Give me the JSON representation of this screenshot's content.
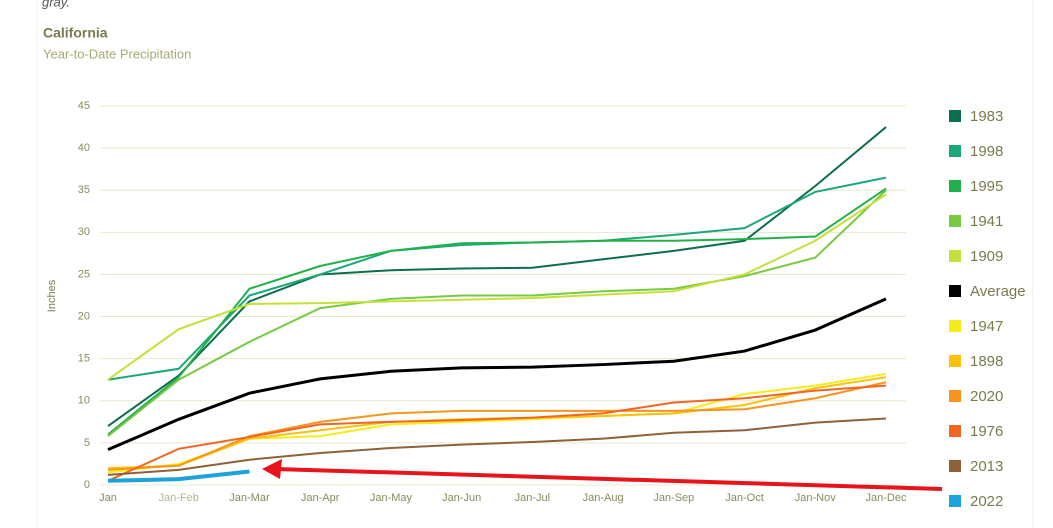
{
  "intro": "gray.",
  "chart_data": {
    "type": "line",
    "title": "California",
    "subtitle": "Year-to-Date Precipitation",
    "y_label": "Inches",
    "categories": [
      "Jan",
      "Jan-Feb",
      "Jan-Mar",
      "Jan-Apr",
      "Jan-May",
      "Jan-Jun",
      "Jan-Jul",
      "Jan-Aug",
      "Jan-Sep",
      "Jan-Oct",
      "Jan-Nov",
      "Jan-Dec"
    ],
    "ylim": [
      0,
      45
    ],
    "yticks": [
      0,
      5,
      10,
      15,
      20,
      25,
      30,
      35,
      40,
      45
    ],
    "grid": true,
    "legend": "right",
    "series": [
      {
        "name": "1983",
        "color": "#0b6e4f",
        "values": [
          7,
          13,
          21.8,
          25,
          25.5,
          25.7,
          25.8,
          26.8,
          27.8,
          29,
          35.5,
          42.5
        ]
      },
      {
        "name": "1998",
        "color": "#1aa87a",
        "values": [
          12.5,
          13.8,
          22.5,
          25,
          27.8,
          28.5,
          28.8,
          29,
          29.7,
          30.5,
          34.8,
          36.5
        ]
      },
      {
        "name": "1995",
        "color": "#22b04b",
        "values": [
          6,
          12.8,
          23.3,
          26,
          27.8,
          28.7,
          28.8,
          29,
          29,
          29.2,
          29.5,
          35.2
        ]
      },
      {
        "name": "1941",
        "color": "#7ac943",
        "values": [
          5.8,
          12.5,
          17,
          21,
          22.1,
          22.5,
          22.5,
          23,
          23.3,
          24.8,
          27,
          35
        ]
      },
      {
        "name": "1909",
        "color": "#c5e03a",
        "values": [
          12.5,
          18.5,
          21.5,
          21.6,
          21.8,
          22,
          22.2,
          22.6,
          23,
          25,
          29,
          34.5
        ]
      },
      {
        "name": "Average",
        "color": "#000000",
        "values": [
          4.2,
          7.8,
          10.9,
          12.6,
          13.5,
          13.9,
          14,
          14.3,
          14.7,
          15.9,
          18.4,
          22.1
        ]
      },
      {
        "name": "1947",
        "color": "#f5ec1a",
        "values": [
          1.5,
          2.5,
          5.5,
          5.8,
          7.2,
          7.5,
          7.8,
          8.2,
          8.5,
          10.8,
          11.8,
          13.2
        ]
      },
      {
        "name": "1898",
        "color": "#fcc10e",
        "values": [
          2,
          2.3,
          5.5,
          6.5,
          7.5,
          7.8,
          8,
          8.2,
          8.5,
          9.5,
          11.5,
          12.8
        ]
      },
      {
        "name": "2020",
        "color": "#f7941d",
        "values": [
          1.8,
          2.3,
          5.8,
          7.5,
          8.5,
          8.8,
          8.8,
          8.8,
          8.8,
          9,
          10.3,
          12.2
        ]
      },
      {
        "name": "1976",
        "color": "#f26522",
        "values": [
          0.5,
          4.3,
          5.7,
          7.2,
          7.5,
          7.7,
          8,
          8.5,
          9.8,
          10.3,
          11.2,
          11.8
        ]
      },
      {
        "name": "2013",
        "color": "#8c6239",
        "values": [
          1.2,
          1.8,
          3,
          3.8,
          4.4,
          4.8,
          5.1,
          5.5,
          6.2,
          6.5,
          7.4,
          7.9
        ]
      },
      {
        "name": "2022",
        "color": "#1ca3dc",
        "values": [
          0.5,
          0.7,
          1.6,
          null,
          null,
          null,
          null,
          null,
          null,
          null,
          null,
          null
        ]
      }
    ]
  }
}
